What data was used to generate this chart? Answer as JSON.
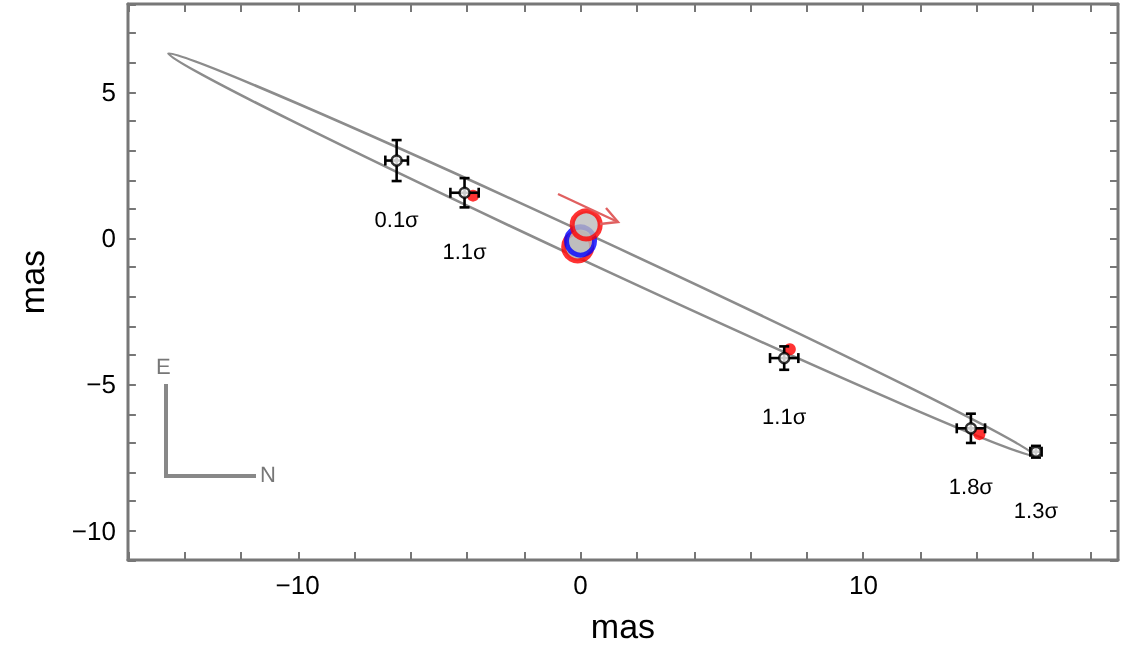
{
  "chart_data": {
    "type": "scatter",
    "xlabel": "mas",
    "ylabel": "mas",
    "xlim": [
      -16,
      19
    ],
    "ylim": [
      -11,
      8
    ],
    "xticks": [
      {
        "value": -16,
        "label": null
      },
      {
        "value": -14,
        "label": null
      },
      {
        "value": -12,
        "label": null
      },
      {
        "value": -10,
        "label": "−10"
      },
      {
        "value": -8,
        "label": null
      },
      {
        "value": -6,
        "label": null
      },
      {
        "value": -4,
        "label": null
      },
      {
        "value": -2,
        "label": null
      },
      0,
      {
        "value": 2,
        "label": null
      },
      {
        "value": 4,
        "label": null
      },
      {
        "value": 6,
        "label": null
      },
      {
        "value": 8,
        "label": null
      },
      10,
      {
        "value": 12,
        "label": null
      },
      {
        "value": 14,
        "label": null
      },
      {
        "value": 16,
        "label": null
      },
      {
        "value": 18,
        "label": null
      }
    ],
    "yticks": [
      {
        "value": -11,
        "label": null
      },
      {
        "value": -10,
        "label": "−10"
      },
      {
        "value": -9,
        "label": null
      },
      {
        "value": -8,
        "label": null
      },
      {
        "value": -7,
        "label": null
      },
      {
        "value": -6,
        "label": null
      },
      {
        "value": -5,
        "label": "−5"
      },
      {
        "value": -4,
        "label": null
      },
      {
        "value": -3,
        "label": null
      },
      {
        "value": -2,
        "label": null
      },
      {
        "value": -1,
        "label": null
      },
      0,
      {
        "value": 1,
        "label": null
      },
      {
        "value": 2,
        "label": null
      },
      {
        "value": 3,
        "label": null
      },
      {
        "value": 4,
        "label": null
      },
      5,
      {
        "value": 6,
        "label": null
      },
      {
        "value": 7,
        "label": null
      },
      {
        "value": 8,
        "label": null
      }
    ],
    "grid": false,
    "series": [
      {
        "color": "#ff0000",
        "x": [
          -3.8,
          7.4,
          14.1
        ],
        "values": [
          1.45,
          -3.8,
          -6.7
        ]
      },
      {
        "color": "#000000",
        "x": [
          -6.5,
          -4.1,
          7.2,
          13.8,
          16.1
        ],
        "values": [
          2.65,
          1.55,
          -4.1,
          -6.5,
          -7.3
        ],
        "errors": [
          0.7,
          0.5,
          0.4,
          0.5,
          0.2
        ],
        "xerrors": [
          0.4,
          0.5,
          0.5,
          0.5,
          0.2
        ]
      },
      {
        "colors": [
          "#ff0000",
          "#0000ff",
          "#ff0000"
        ],
        "x": [
          -0.1,
          0,
          0.2
        ],
        "values": [
          -0.3,
          -0.1,
          0.45
        ]
      }
    ],
    "annotations": [
      "E",
      "N",
      {
        "text": "0.1σ",
        "x": -6.5,
        "y": 2.65
      },
      {
        "text": "1.1σ",
        "x": -4.1,
        "y": 1.55
      },
      {
        "text": "1.1σ",
        "x": 7.2,
        "y": -4.1
      },
      {
        "text": "1.8σ",
        "x": 13.8,
        "y": -6.5
      },
      {
        "text": "1.3σ",
        "x": 16.1,
        "y": -7.3
      }
    ]
  }
}
